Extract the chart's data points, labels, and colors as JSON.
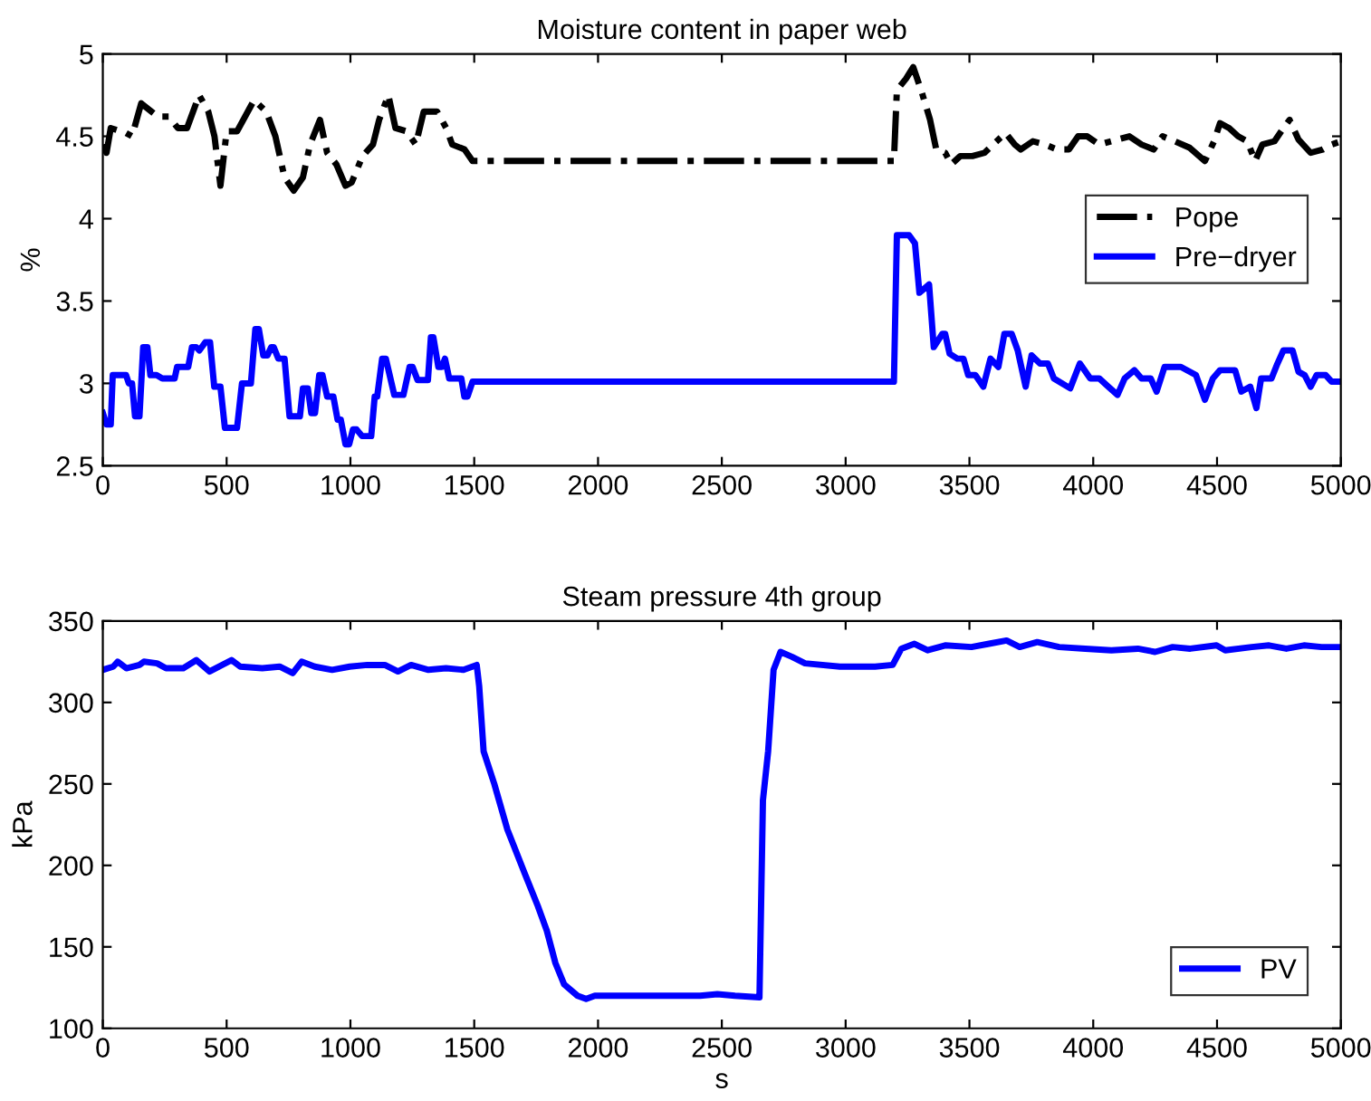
{
  "chart_data": [
    {
      "type": "line",
      "title": "Moisture content in paper web",
      "ylabel": "%",
      "xlim": [
        0,
        5000
      ],
      "ylim": [
        2.5,
        5
      ],
      "xticks": [
        0,
        500,
        1000,
        1500,
        2000,
        2500,
        3000,
        3500,
        4000,
        4500,
        5000
      ],
      "yticks": [
        2.5,
        3,
        3.5,
        4,
        4.5,
        5
      ],
      "grid": false,
      "legend": "right",
      "series": [
        {
          "name": "Pope",
          "color": "#000000",
          "line_style": "dashdot",
          "x": [
            0,
            15,
            32,
            94,
            118,
            155,
            222,
            266,
            303,
            340,
            389,
            426,
            451,
            475,
            500,
            542,
            611,
            660,
            697,
            734,
            771,
            808,
            837,
            877,
            906,
            943,
            980,
            1005,
            1049,
            1091,
            1116,
            1153,
            1182,
            1227,
            1264,
            1296,
            1350,
            1387,
            1411,
            1461,
            1493,
            3195,
            3207,
            3244,
            3273,
            3305,
            3341,
            3366,
            3402,
            3427,
            3463,
            3512,
            3561,
            3610,
            3646,
            3683,
            3707,
            3756,
            3805,
            3854,
            3902,
            3939,
            3976,
            4024,
            4073,
            4146,
            4195,
            4244,
            4280,
            4329,
            4390,
            4451,
            4488,
            4512,
            4549,
            4585,
            4622,
            4654,
            4683,
            4732,
            4768,
            4793,
            4829,
            4878,
            4927,
            4963,
            5000
          ],
          "values": [
            4.45,
            4.4,
            4.55,
            4.52,
            4.5,
            4.7,
            4.62,
            4.62,
            4.55,
            4.55,
            4.75,
            4.65,
            4.5,
            4.2,
            4.53,
            4.53,
            4.72,
            4.65,
            4.5,
            4.25,
            4.17,
            4.25,
            4.45,
            4.6,
            4.4,
            4.33,
            4.2,
            4.22,
            4.38,
            4.45,
            4.6,
            4.75,
            4.55,
            4.53,
            4.45,
            4.65,
            4.65,
            4.55,
            4.45,
            4.42,
            4.35,
            4.35,
            4.78,
            4.85,
            4.92,
            4.78,
            4.6,
            4.42,
            4.4,
            4.33,
            4.38,
            4.38,
            4.4,
            4.47,
            4.52,
            4.45,
            4.42,
            4.47,
            4.45,
            4.42,
            4.42,
            4.5,
            4.5,
            4.45,
            4.47,
            4.5,
            4.45,
            4.42,
            4.5,
            4.47,
            4.43,
            4.35,
            4.47,
            4.58,
            4.55,
            4.5,
            4.47,
            4.35,
            4.45,
            4.47,
            4.55,
            4.6,
            4.48,
            4.4,
            4.42,
            4.45,
            4.47
          ]
        },
        {
          "name": "Pre−dryer",
          "color": "#0000ff",
          "line_style": "solid",
          "x": [
            0,
            15,
            32,
            40,
            94,
            105,
            118,
            130,
            148,
            163,
            180,
            192,
            217,
            240,
            290,
            300,
            345,
            360,
            377,
            390,
            414,
            433,
            450,
            475,
            493,
            542,
            562,
            598,
            616,
            630,
            648,
            665,
            680,
            690,
            709,
            734,
            754,
            796,
            808,
            828,
            842,
            857,
            874,
            887,
            906,
            931,
            948,
            961,
            980,
            995,
            1010,
            1025,
            1047,
            1084,
            1098,
            1108,
            1128,
            1143,
            1177,
            1214,
            1239,
            1251,
            1271,
            1313,
            1325,
            1335,
            1355,
            1369,
            1382,
            1399,
            1448,
            1460,
            1473,
            1493,
            3195,
            3207,
            3256,
            3280,
            3298,
            3337,
            3356,
            3390,
            3402,
            3420,
            3451,
            3476,
            3495,
            3524,
            3556,
            3585,
            3617,
            3641,
            3671,
            3695,
            3727,
            3751,
            3785,
            3817,
            3841,
            3907,
            3946,
            3988,
            4024,
            4061,
            4098,
            4127,
            4166,
            4195,
            4232,
            4256,
            4288,
            4354,
            4415,
            4451,
            4483,
            4512,
            4573,
            4598,
            4634,
            4659,
            4678,
            4720,
            4744,
            4768,
            4805,
            4829,
            4854,
            4878,
            4902,
            4939,
            4963,
            5000
          ],
          "values": [
            2.82,
            2.75,
            2.75,
            3.05,
            3.05,
            3.0,
            3.0,
            2.8,
            2.8,
            3.22,
            3.22,
            3.05,
            3.05,
            3.03,
            3.03,
            3.1,
            3.1,
            3.22,
            3.22,
            3.2,
            3.25,
            3.25,
            2.98,
            2.98,
            2.73,
            2.73,
            3.0,
            3.0,
            3.33,
            3.33,
            3.17,
            3.17,
            3.22,
            3.22,
            3.15,
            3.15,
            2.8,
            2.8,
            2.97,
            2.97,
            2.82,
            2.82,
            3.05,
            3.05,
            2.92,
            2.92,
            2.78,
            2.78,
            2.63,
            2.63,
            2.72,
            2.72,
            2.68,
            2.68,
            2.92,
            2.92,
            3.15,
            3.15,
            2.93,
            2.93,
            3.1,
            3.1,
            3.02,
            3.02,
            3.28,
            3.28,
            3.1,
            3.1,
            3.15,
            3.03,
            3.03,
            2.92,
            2.92,
            3.01,
            3.01,
            3.9,
            3.9,
            3.85,
            3.55,
            3.6,
            3.22,
            3.3,
            3.3,
            3.18,
            3.15,
            3.15,
            3.05,
            3.05,
            2.98,
            3.15,
            3.1,
            3.3,
            3.3,
            3.2,
            2.98,
            3.17,
            3.12,
            3.12,
            3.03,
            2.97,
            3.12,
            3.03,
            3.03,
            2.98,
            2.93,
            3.03,
            3.08,
            3.03,
            3.03,
            2.95,
            3.1,
            3.1,
            3.05,
            2.9,
            3.03,
            3.08,
            3.08,
            2.95,
            2.98,
            2.85,
            3.03,
            3.03,
            3.12,
            3.2,
            3.2,
            3.07,
            3.05,
            2.98,
            3.05,
            3.05,
            3.01,
            3.01
          ]
        }
      ]
    },
    {
      "type": "line",
      "title": "Steam pressure 4th group",
      "xlabel": "s",
      "ylabel": "kPa",
      "xlim": [
        0,
        5000
      ],
      "ylim": [
        100,
        350
      ],
      "xticks": [
        0,
        500,
        1000,
        1500,
        2000,
        2500,
        3000,
        3500,
        4000,
        4500,
        5000
      ],
      "yticks": [
        100,
        150,
        200,
        250,
        300,
        350
      ],
      "grid": false,
      "legend": "bottom right",
      "series": [
        {
          "name": "PV",
          "color": "#0000ff",
          "line_style": "solid",
          "x": [
            0,
            42,
            60,
            95,
            148,
            166,
            219,
            255,
            325,
            378,
            431,
            520,
            555,
            644,
            714,
            767,
            803,
            856,
            926,
            997,
            1068,
            1139,
            1192,
            1245,
            1315,
            1386,
            1457,
            1510,
            1520,
            1538,
            1581,
            1634,
            1704,
            1757,
            1793,
            1828,
            1863,
            1917,
            1952,
            1987,
            2129,
            2270,
            2412,
            2482,
            2553,
            2652,
            2666,
            2687,
            2709,
            2737,
            2783,
            2836,
            2977,
            3119,
            3190,
            3225,
            3278,
            3331,
            3402,
            3508,
            3579,
            3650,
            3703,
            3774,
            3862,
            3968,
            4073,
            4180,
            4250,
            4321,
            4392,
            4498,
            4533,
            4640,
            4710,
            4780,
            4851,
            4922,
            5000
          ],
          "values": [
            320,
            322,
            325,
            321,
            323,
            325,
            324,
            321,
            321,
            326,
            319,
            326,
            322,
            321,
            322,
            318,
            325,
            322,
            320,
            322,
            323,
            323,
            319,
            323,
            320,
            321,
            320,
            323,
            310,
            270,
            250,
            222,
            195,
            175,
            160,
            140,
            127,
            120,
            118,
            120,
            120,
            120,
            120,
            121,
            120,
            119,
            240,
            270,
            320,
            331,
            328,
            324,
            322,
            322,
            323,
            333,
            336,
            332,
            335,
            334,
            336,
            338,
            334,
            337,
            334,
            333,
            332,
            333,
            331,
            334,
            333,
            335,
            332,
            334,
            335,
            333,
            335,
            334,
            334
          ]
        }
      ]
    }
  ]
}
